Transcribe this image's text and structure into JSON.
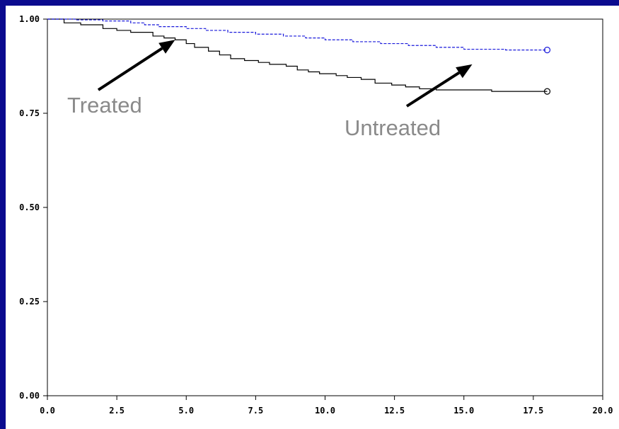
{
  "chart_data": {
    "type": "line",
    "title": "",
    "xlabel": "",
    "ylabel": "",
    "xlim": [
      0,
      20
    ],
    "ylim": [
      0,
      1
    ],
    "x_ticks": [
      "0.0",
      "2.5",
      "5.0",
      "7.5",
      "10.0",
      "12.5",
      "15.0",
      "17.5",
      "20.0"
    ],
    "y_ticks": [
      "0.00",
      "0.25",
      "0.50",
      "0.75",
      "1.00"
    ],
    "grid": false,
    "legend": "none",
    "series": [
      {
        "name": "Treated",
        "color": "#000000",
        "style": "step-solid",
        "censor_marker": "circle",
        "points": [
          [
            0,
            1.0
          ],
          [
            0.6,
            0.99
          ],
          [
            1.2,
            0.985
          ],
          [
            2.0,
            0.975
          ],
          [
            2.5,
            0.97
          ],
          [
            3.0,
            0.965
          ],
          [
            3.8,
            0.955
          ],
          [
            4.2,
            0.95
          ],
          [
            4.6,
            0.945
          ],
          [
            5.0,
            0.935
          ],
          [
            5.3,
            0.925
          ],
          [
            5.8,
            0.915
          ],
          [
            6.2,
            0.905
          ],
          [
            6.6,
            0.895
          ],
          [
            7.1,
            0.89
          ],
          [
            7.6,
            0.885
          ],
          [
            8.0,
            0.88
          ],
          [
            8.6,
            0.875
          ],
          [
            9.0,
            0.865
          ],
          [
            9.4,
            0.86
          ],
          [
            9.8,
            0.855
          ],
          [
            10.4,
            0.85
          ],
          [
            10.8,
            0.845
          ],
          [
            11.3,
            0.84
          ],
          [
            11.8,
            0.83
          ],
          [
            12.4,
            0.825
          ],
          [
            12.9,
            0.82
          ],
          [
            13.4,
            0.815
          ],
          [
            14.0,
            0.812
          ],
          [
            16.0,
            0.808
          ],
          [
            18.0,
            0.808
          ]
        ]
      },
      {
        "name": "Untreated",
        "color": "#1a1adb",
        "style": "step-dashed",
        "censor_marker": "circle",
        "points": [
          [
            0,
            1.0
          ],
          [
            1.0,
            0.998
          ],
          [
            2.0,
            0.995
          ],
          [
            3.0,
            0.99
          ],
          [
            3.5,
            0.985
          ],
          [
            4.0,
            0.98
          ],
          [
            5.0,
            0.975
          ],
          [
            5.7,
            0.97
          ],
          [
            6.5,
            0.965
          ],
          [
            7.5,
            0.96
          ],
          [
            8.5,
            0.955
          ],
          [
            9.3,
            0.95
          ],
          [
            10.0,
            0.945
          ],
          [
            11.0,
            0.94
          ],
          [
            12.0,
            0.935
          ],
          [
            13.0,
            0.93
          ],
          [
            14.0,
            0.925
          ],
          [
            15.0,
            0.92
          ],
          [
            16.5,
            0.918
          ],
          [
            18.0,
            0.918
          ]
        ]
      }
    ],
    "annotations": [
      {
        "text": "Treated",
        "arrow_to": [
          4.6,
          0.945
        ]
      },
      {
        "text": "Untreated",
        "arrow_to": [
          15.3,
          0.88
        ]
      }
    ]
  }
}
